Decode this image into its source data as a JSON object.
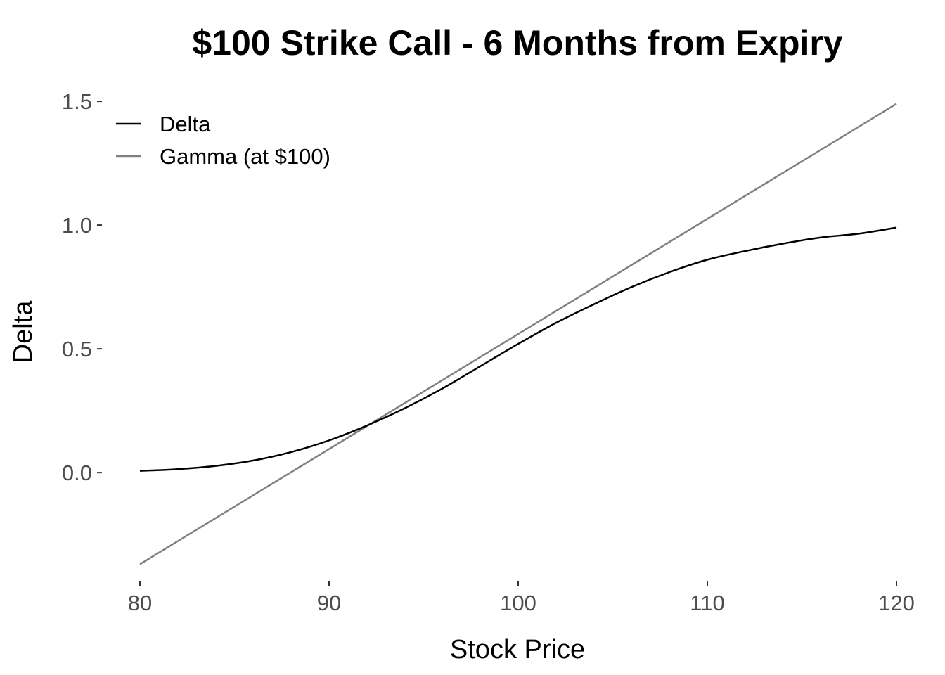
{
  "chart_data": {
    "type": "line",
    "title": "$100 Strike Call - 6 Months from Expiry",
    "xlabel": "Stock Price",
    "ylabel": "Delta",
    "xlim": [
      80,
      120
    ],
    "ylim": [
      -0.42,
      1.54
    ],
    "x_ticks": [
      80,
      90,
      100,
      110,
      120
    ],
    "x_tick_labels": [
      "80",
      "90",
      "100",
      "110",
      "120"
    ],
    "y_ticks": [
      0,
      0.5,
      1.0,
      1.5
    ],
    "y_tick_labels": [
      "0.0",
      "0.5",
      "1.0",
      "1.5"
    ],
    "grid": false,
    "legend_position": "top-left",
    "series": [
      {
        "name": "Delta",
        "color": "#000000",
        "x": [
          80,
          82,
          84,
          86,
          88,
          90,
          92,
          94,
          96,
          98,
          100,
          102,
          104,
          106,
          108,
          110,
          112,
          114,
          116,
          118,
          120
        ],
        "y": [
          0.007,
          0.014,
          0.027,
          0.049,
          0.083,
          0.13,
          0.19,
          0.26,
          0.34,
          0.43,
          0.52,
          0.605,
          0.68,
          0.75,
          0.81,
          0.86,
          0.895,
          0.925,
          0.95,
          0.965,
          0.99
        ]
      },
      {
        "name": "Gamma (at $100)",
        "color": "#808080",
        "x": [
          80,
          120
        ],
        "y": [
          -0.37,
          1.49
        ]
      }
    ]
  }
}
